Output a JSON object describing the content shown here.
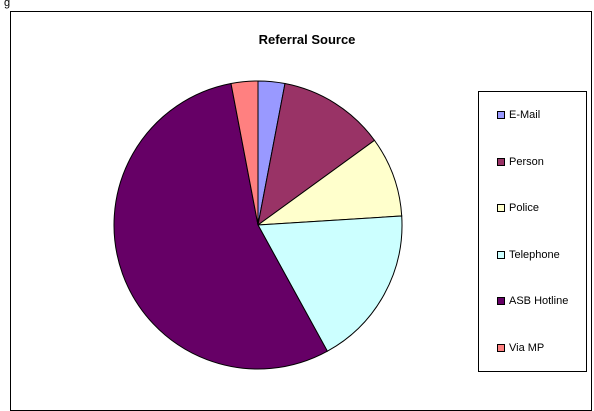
{
  "caption_fragment": "g",
  "chart_data": {
    "type": "pie",
    "title": "Referral Source",
    "legend_position": "right",
    "slices": [
      {
        "label": "E-Mail",
        "value": 3,
        "color": "#9999FF"
      },
      {
        "label": "Person",
        "value": 12,
        "color": "#993366"
      },
      {
        "label": "Police",
        "value": 9,
        "color": "#FFFFCC"
      },
      {
        "label": "Telephone",
        "value": 18,
        "color": "#CCFFFF"
      },
      {
        "label": "ASB Hotline",
        "value": 55,
        "color": "#660066"
      },
      {
        "label": "Via MP",
        "value": 3,
        "color": "#FF8080"
      }
    ]
  }
}
